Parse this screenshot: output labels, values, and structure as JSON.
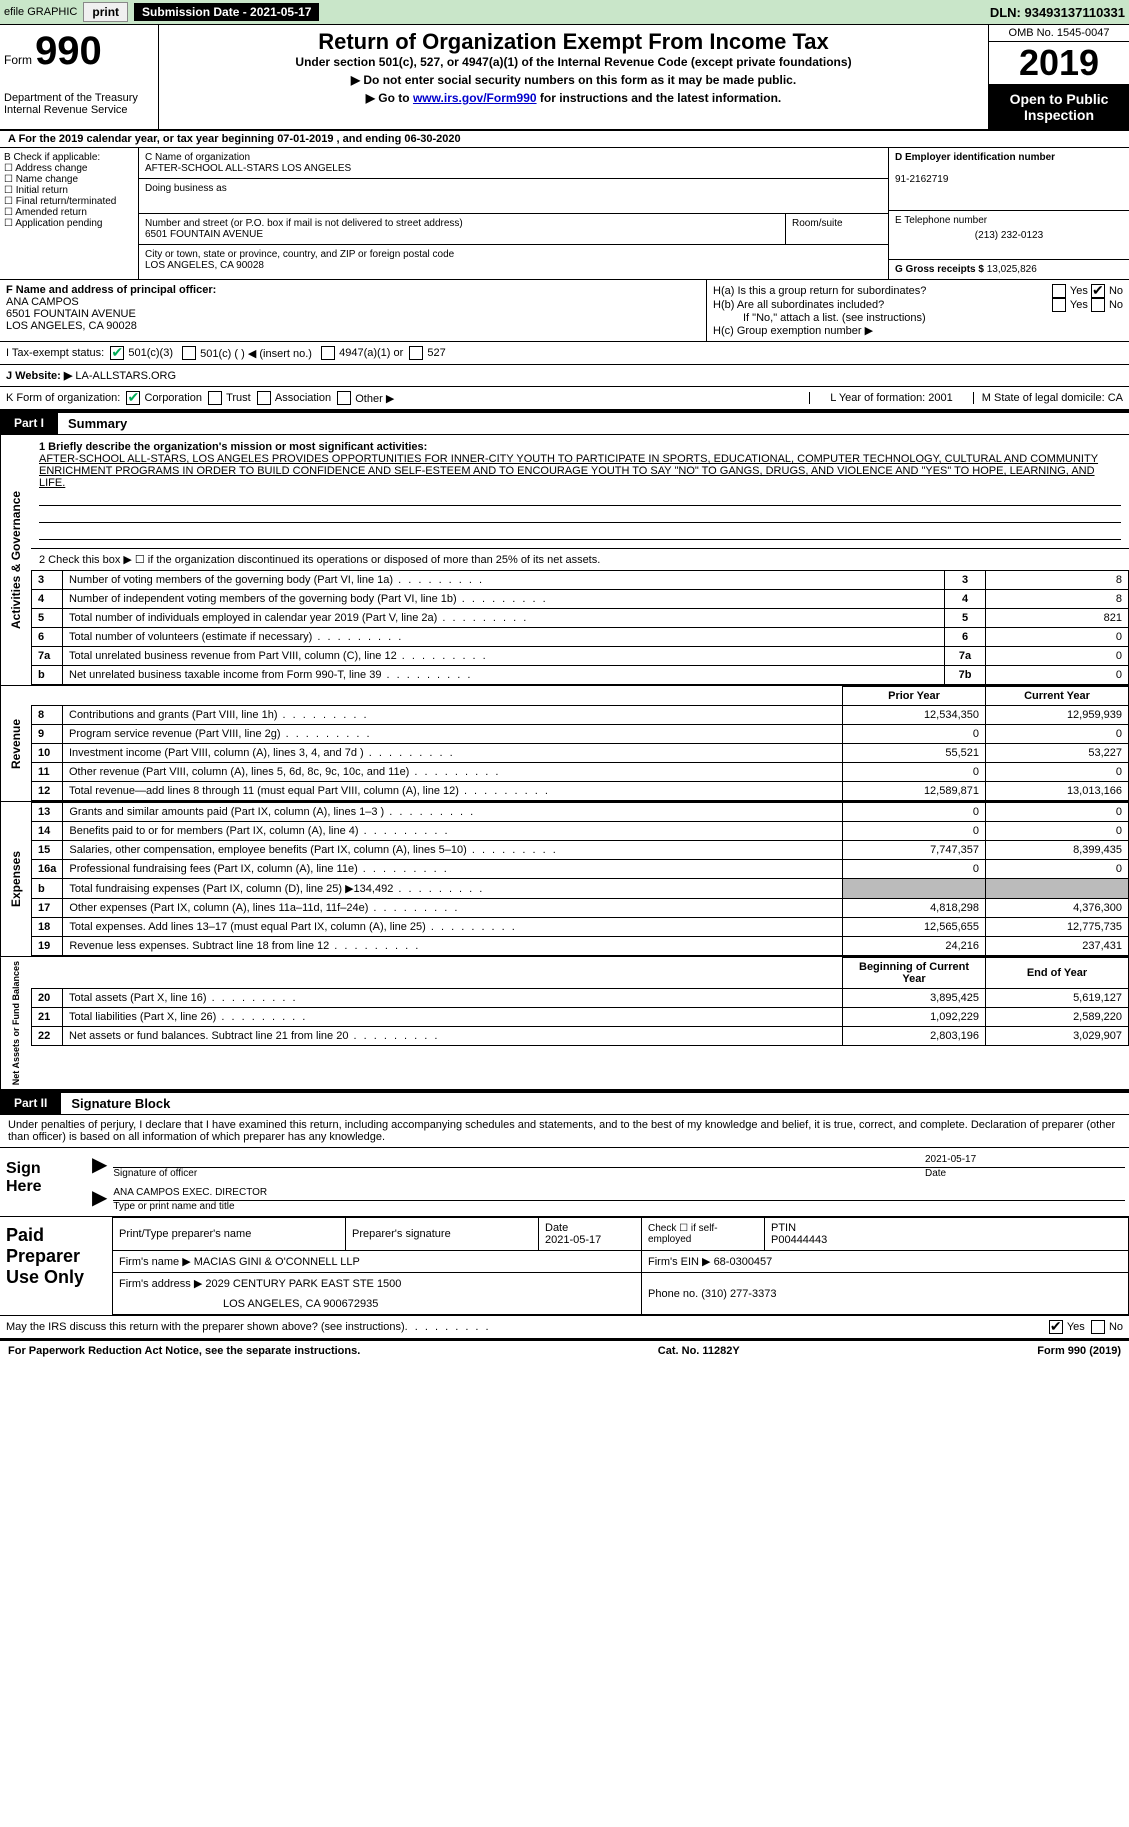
{
  "top": {
    "efile": "efile GRAPHIC",
    "print": "print",
    "sub_label": "Submission Date - 2021-05-17",
    "dln": "DLN: 93493137110331"
  },
  "header": {
    "form_word": "Form",
    "form_num": "990",
    "dept": "Department of the Treasury\nInternal Revenue Service",
    "title": "Return of Organization Exempt From Income Tax",
    "sub1": "Under section 501(c), 527, or 4947(a)(1) of the Internal Revenue Code (except private foundations)",
    "sub2": "▶ Do not enter social security numbers on this form as it may be made public.",
    "sub3_pre": "▶ Go to ",
    "sub3_link": "www.irs.gov/Form990",
    "sub3_post": " for instructions and the latest information.",
    "omb": "OMB No. 1545-0047",
    "year": "2019",
    "open": "Open to Public Inspection"
  },
  "line_a": "A For the 2019 calendar year, or tax year beginning 07-01-2019   , and ending 06-30-2020",
  "box_b": {
    "title": "B Check if applicable:",
    "opts": [
      "Address change",
      "Name change",
      "Initial return",
      "Final return/terminated",
      "Amended return",
      "Application pending"
    ]
  },
  "box_c": {
    "name_lbl": "C Name of organization",
    "name": "AFTER-SCHOOL ALL-STARS LOS ANGELES",
    "dba_lbl": "Doing business as",
    "addr_lbl": "Number and street (or P.O. box if mail is not delivered to street address)",
    "room_lbl": "Room/suite",
    "addr": "6501 FOUNTAIN AVENUE",
    "city_lbl": "City or town, state or province, country, and ZIP or foreign postal code",
    "city": "LOS ANGELES, CA  90028"
  },
  "box_d": {
    "lbl": "D Employer identification number",
    "val": "91-2162719"
  },
  "box_e": {
    "lbl": "E Telephone number",
    "val": "(213) 232-0123"
  },
  "box_g": {
    "lbl": "G Gross receipts $",
    "val": "13,025,826"
  },
  "box_f": {
    "lbl": "F Name and address of principal officer:",
    "name": "ANA CAMPOS",
    "addr1": "6501 FOUNTAIN AVENUE",
    "addr2": "LOS ANGELES, CA  90028"
  },
  "box_h": {
    "a": "H(a)  Is this a group return for subordinates?",
    "b": "H(b)  Are all subordinates included?",
    "note": "If \"No,\" attach a list. (see instructions)",
    "c": "H(c)  Group exemption number ▶"
  },
  "line_i": {
    "lbl": "I  Tax-exempt status:",
    "o1": "501(c)(3)",
    "o2": "501(c) (  ) ◀ (insert no.)",
    "o3": "4947(a)(1) or",
    "o4": "527"
  },
  "line_j": {
    "lbl": "J  Website: ▶",
    "val": "LA-ALLSTARS.ORG"
  },
  "line_k": {
    "lbl": "K Form of organization:",
    "o": [
      "Corporation",
      "Trust",
      "Association",
      "Other ▶"
    ]
  },
  "line_l": "L Year of formation: 2001",
  "line_m": "M State of legal domicile: CA",
  "part1": {
    "label": "Part I",
    "title": "Summary",
    "q1_lbl": "1  Briefly describe the organization's mission or most significant activities:",
    "q1_text": "AFTER-SCHOOL ALL-STARS, LOS ANGELES PROVIDES OPPORTUNITIES FOR INNER-CITY YOUTH TO PARTICIPATE IN SPORTS, EDUCATIONAL, COMPUTER TECHNOLOGY, CULTURAL AND COMMUNITY ENRICHMENT PROGRAMS IN ORDER TO BUILD CONFIDENCE AND SELF-ESTEEM AND TO ENCOURAGE YOUTH TO SAY \"NO\" TO GANGS, DRUGS, AND VIOLENCE AND \"YES\" TO HOPE, LEARNING, AND LIFE.",
    "q2": "2  Check this box ▶ ☐  if the organization discontinued its operations or disposed of more than 25% of its net assets."
  },
  "gov_rows": [
    {
      "n": "3",
      "t": "Number of voting members of the governing body (Part VI, line 1a)",
      "c": "3",
      "v": "8"
    },
    {
      "n": "4",
      "t": "Number of independent voting members of the governing body (Part VI, line 1b)",
      "c": "4",
      "v": "8"
    },
    {
      "n": "5",
      "t": "Total number of individuals employed in calendar year 2019 (Part V, line 2a)",
      "c": "5",
      "v": "821"
    },
    {
      "n": "6",
      "t": "Total number of volunteers (estimate if necessary)",
      "c": "6",
      "v": "0"
    },
    {
      "n": "7a",
      "t": "Total unrelated business revenue from Part VIII, column (C), line 12",
      "c": "7a",
      "v": "0"
    },
    {
      "n": "b",
      "t": "Net unrelated business taxable income from Form 990-T, line 39",
      "c": "7b",
      "v": "0"
    }
  ],
  "col_hdr": {
    "prior": "Prior Year",
    "curr": "Current Year"
  },
  "rev_rows": [
    {
      "n": "8",
      "t": "Contributions and grants (Part VIII, line 1h)",
      "p": "12,534,350",
      "c": "12,959,939"
    },
    {
      "n": "9",
      "t": "Program service revenue (Part VIII, line 2g)",
      "p": "0",
      "c": "0"
    },
    {
      "n": "10",
      "t": "Investment income (Part VIII, column (A), lines 3, 4, and 7d )",
      "p": "55,521",
      "c": "53,227"
    },
    {
      "n": "11",
      "t": "Other revenue (Part VIII, column (A), lines 5, 6d, 8c, 9c, 10c, and 11e)",
      "p": "0",
      "c": "0"
    },
    {
      "n": "12",
      "t": "Total revenue—add lines 8 through 11 (must equal Part VIII, column (A), line 12)",
      "p": "12,589,871",
      "c": "13,013,166"
    }
  ],
  "exp_rows": [
    {
      "n": "13",
      "t": "Grants and similar amounts paid (Part IX, column (A), lines 1–3 )",
      "p": "0",
      "c": "0"
    },
    {
      "n": "14",
      "t": "Benefits paid to or for members (Part IX, column (A), line 4)",
      "p": "0",
      "c": "0"
    },
    {
      "n": "15",
      "t": "Salaries, other compensation, employee benefits (Part IX, column (A), lines 5–10)",
      "p": "7,747,357",
      "c": "8,399,435"
    },
    {
      "n": "16a",
      "t": "Professional fundraising fees (Part IX, column (A), line 11e)",
      "p": "0",
      "c": "0"
    },
    {
      "n": "b",
      "t": "Total fundraising expenses (Part IX, column (D), line 25) ▶134,492",
      "p": "",
      "c": "",
      "grey": true
    },
    {
      "n": "17",
      "t": "Other expenses (Part IX, column (A), lines 11a–11d, 11f–24e)",
      "p": "4,818,298",
      "c": "4,376,300"
    },
    {
      "n": "18",
      "t": "Total expenses. Add lines 13–17 (must equal Part IX, column (A), line 25)",
      "p": "12,565,655",
      "c": "12,775,735"
    },
    {
      "n": "19",
      "t": "Revenue less expenses. Subtract line 18 from line 12",
      "p": "24,216",
      "c": "237,431"
    }
  ],
  "bal_hdr": {
    "beg": "Beginning of Current Year",
    "end": "End of Year"
  },
  "bal_rows": [
    {
      "n": "20",
      "t": "Total assets (Part X, line 16)",
      "p": "3,895,425",
      "c": "5,619,127"
    },
    {
      "n": "21",
      "t": "Total liabilities (Part X, line 26)",
      "p": "1,092,229",
      "c": "2,589,220"
    },
    {
      "n": "22",
      "t": "Net assets or fund balances. Subtract line 21 from line 20",
      "p": "2,803,196",
      "c": "3,029,907"
    }
  ],
  "vtabs": {
    "gov": "Activities & Governance",
    "rev": "Revenue",
    "exp": "Expenses",
    "bal": "Net Assets or Fund Balances"
  },
  "part2": {
    "label": "Part II",
    "title": "Signature Block",
    "intro": "Under penalties of perjury, I declare that I have examined this return, including accompanying schedules and statements, and to the best of my knowledge and belief, it is true, correct, and complete. Declaration of preparer (other than officer) is based on all information of which preparer has any knowledge."
  },
  "sign": {
    "label": "Sign Here",
    "sig_lbl": "Signature of officer",
    "date": "2021-05-17",
    "date_lbl": "Date",
    "name": "ANA CAMPOS  EXEC. DIRECTOR",
    "name_lbl": "Type or print name and title"
  },
  "prep": {
    "label": "Paid Preparer Use Only",
    "h1": "Print/Type preparer's name",
    "h2": "Preparer's signature",
    "h3": "Date",
    "date": "2021-05-17",
    "h4": "Check ☐ if self-employed",
    "h5": "PTIN",
    "ptin": "P00444443",
    "firm_lbl": "Firm's name    ▶",
    "firm": "MACIAS GINI & O'CONNELL LLP",
    "ein_lbl": "Firm's EIN ▶",
    "ein": "68-0300457",
    "addr_lbl": "Firm's address ▶",
    "addr": "2029 CENTURY PARK EAST STE 1500",
    "addr2": "LOS ANGELES, CA  900672935",
    "phone_lbl": "Phone no.",
    "phone": "(310) 277-3373"
  },
  "discuss": "May the IRS discuss this return with the preparer shown above? (see instructions)",
  "footer": {
    "left": "For Paperwork Reduction Act Notice, see the separate instructions.",
    "mid": "Cat. No. 11282Y",
    "right": "Form 990 (2019)"
  },
  "yn": {
    "yes": "Yes",
    "no": "No"
  }
}
